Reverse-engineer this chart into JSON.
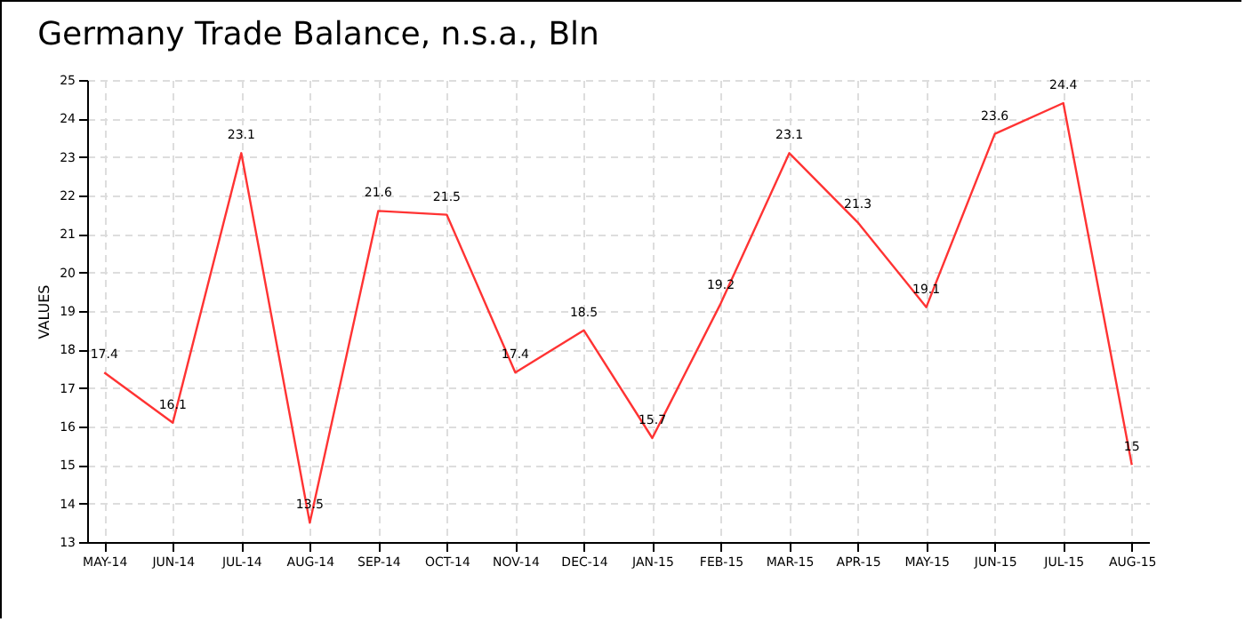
{
  "chart_data": {
    "type": "line",
    "title": "Germany Trade Balance, n.s.a., Bln",
    "ylabel": "VALUES",
    "categories": [
      "MAY-14",
      "JUN-14",
      "JUL-14",
      "AUG-14",
      "SEP-14",
      "OCT-14",
      "NOV-14",
      "DEC-14",
      "JAN-15",
      "FEB-15",
      "MAR-15",
      "APR-15",
      "MAY-15",
      "JUN-15",
      "JUL-15",
      "AUG-15"
    ],
    "series": [
      {
        "color": "#ff3333",
        "values": [
          17.4,
          16.1,
          23.1,
          13.5,
          21.6,
          21.5,
          17.4,
          18.5,
          15.7,
          19.2,
          23.1,
          21.3,
          19.1,
          23.6,
          24.4,
          15
        ]
      }
    ],
    "ylim": [
      13,
      25
    ],
    "yticks": [
      13,
      14,
      15,
      16,
      17,
      18,
      19,
      20,
      21,
      22,
      23,
      24,
      25
    ],
    "grid": true,
    "data_labels": true,
    "line_style": "solid"
  }
}
